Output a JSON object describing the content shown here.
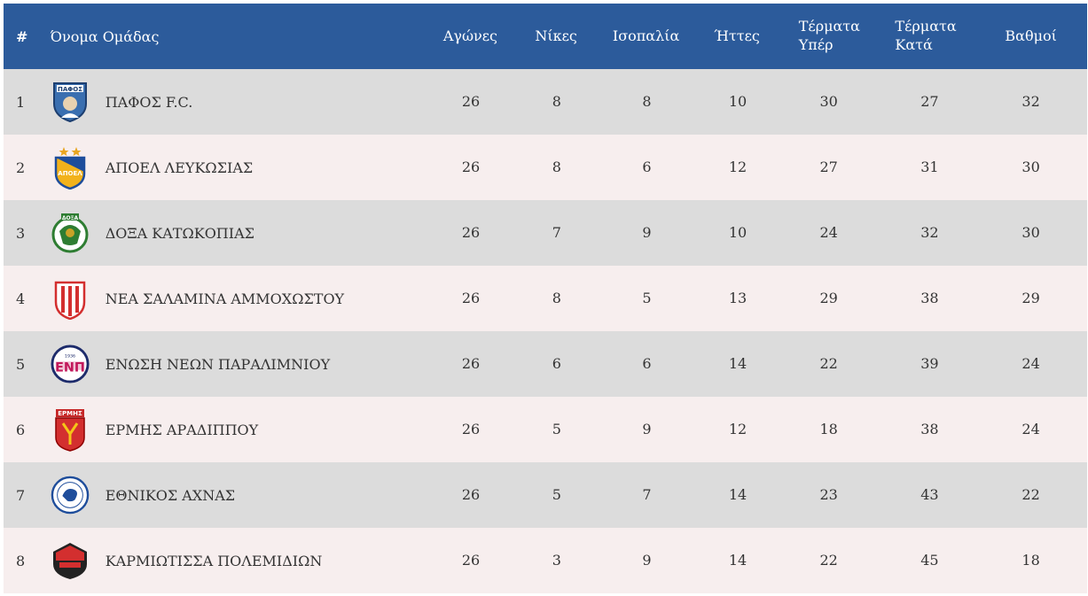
{
  "header": {
    "pos": "#",
    "team": "Όνομα Ομάδας",
    "played": "Αγώνες",
    "wins": "Νίκες",
    "draws": "Ισοπαλία",
    "losses": "Ήττες",
    "gf_line1": "Τέρματα",
    "gf_line2": "Υπέρ",
    "ga_line1": "Τέρματα",
    "ga_line2": "Κατά",
    "points": "Βαθμοί"
  },
  "colors": {
    "header_bg": "#2c5b9b",
    "row_odd": "#dcdcdc",
    "row_even": "#f7eeee"
  },
  "rows": [
    {
      "pos": "1",
      "team": "ΠΑΦΟΣ F.C.",
      "logo": "pafos-crest-icon",
      "played": "26",
      "wins": "8",
      "draws": "8",
      "losses": "10",
      "gf": "30",
      "ga": "27",
      "pts": "32"
    },
    {
      "pos": "2",
      "team": "ΑΠΟΕΛ ΛΕΥΚΩΣΙΑΣ",
      "logo": "apoel-crest-icon",
      "played": "26",
      "wins": "8",
      "draws": "6",
      "losses": "12",
      "gf": "27",
      "ga": "31",
      "pts": "30"
    },
    {
      "pos": "3",
      "team": "ΔΟΞΑ ΚΑΤΩΚΟΠΙΑΣ",
      "logo": "doxa-crest-icon",
      "played": "26",
      "wins": "7",
      "draws": "9",
      "losses": "10",
      "gf": "24",
      "ga": "32",
      "pts": "30"
    },
    {
      "pos": "4",
      "team": "ΝΕΑ ΣΑΛΑΜΙΝΑ ΑΜΜΟΧΩΣΤΟΥ",
      "logo": "nea-salamina-crest-icon",
      "played": "26",
      "wins": "8",
      "draws": "5",
      "losses": "13",
      "gf": "29",
      "ga": "38",
      "pts": "29"
    },
    {
      "pos": "5",
      "team": "ΕΝΩΣΗ ΝΕΩΝ ΠΑΡΑΛΙΜΝΙΟΥ",
      "logo": "enp-crest-icon",
      "played": "26",
      "wins": "6",
      "draws": "6",
      "losses": "14",
      "gf": "22",
      "ga": "39",
      "pts": "24"
    },
    {
      "pos": "6",
      "team": "ΕΡΜΗΣ ΑΡΑΔΙΠΠΟΥ",
      "logo": "ermis-crest-icon",
      "played": "26",
      "wins": "5",
      "draws": "9",
      "losses": "12",
      "gf": "18",
      "ga": "38",
      "pts": "24"
    },
    {
      "pos": "7",
      "team": "ΕΘΝΙΚΟΣ ΑΧΝΑΣ",
      "logo": "ethnikos-crest-icon",
      "played": "26",
      "wins": "5",
      "draws": "7",
      "losses": "14",
      "gf": "23",
      "ga": "43",
      "pts": "22"
    },
    {
      "pos": "8",
      "team": "ΚΑΡΜΙΩΤΙΣΣΑ ΠΟΛΕΜΙΔΙΩΝ",
      "logo": "karmiotissa-crest-icon",
      "played": "26",
      "wins": "3",
      "draws": "9",
      "losses": "14",
      "gf": "22",
      "ga": "45",
      "pts": "18"
    }
  ]
}
